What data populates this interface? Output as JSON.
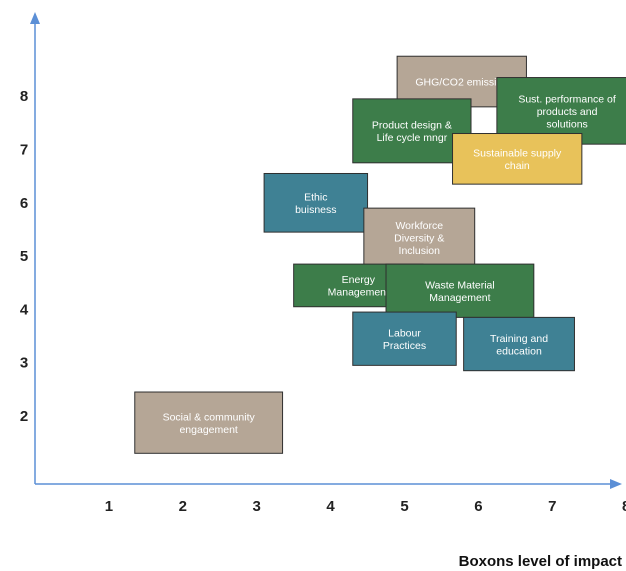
{
  "chart_data": {
    "type": "matrix",
    "xlabel": "Boxons level of impact",
    "ylabel": "",
    "xlim": [
      0,
      8
    ],
    "ylim": [
      0.6,
      8.6
    ],
    "x_ticks": [
      "1",
      "2",
      "3",
      "4",
      "5",
      "6",
      "7",
      "8"
    ],
    "y_ticks": [
      "2",
      "3",
      "4",
      "5",
      "6",
      "7",
      "8"
    ],
    "colors": {
      "axis": "#5b8fd6",
      "taupe": "#b5a696",
      "green": "#3d7d4a",
      "teal": "#3f8194",
      "yellow": "#e8c25a",
      "border": "#2f2f2f"
    },
    "boxes": [
      {
        "label": "Social & community engagement",
        "lines": [
          "Social & community",
          "engagement"
        ],
        "x0": 1.35,
        "x1": 3.35,
        "y0": 1.3,
        "y1": 2.45,
        "color": "taupe"
      },
      {
        "label": "Ethic buisness",
        "lines": [
          "Ethic",
          "buisness"
        ],
        "x0": 3.1,
        "x1": 4.5,
        "y0": 5.45,
        "y1": 6.55,
        "color": "teal"
      },
      {
        "label": "GHG/CO2 emission",
        "lines": [
          "GHG/CO2 emission"
        ],
        "x0": 4.9,
        "x1": 6.65,
        "y0": 7.8,
        "y1": 8.75,
        "color": "taupe"
      },
      {
        "label": "Sust. performance of products and solutions",
        "lines": [
          "Sust. performance of",
          "products and",
          "solutions"
        ],
        "x0": 6.25,
        "x1": 8.15,
        "y0": 7.1,
        "y1": 8.35,
        "color": "green"
      },
      {
        "label": "Product design & Life cycle mngr",
        "lines": [
          "Product design &",
          "Life cycle mngr"
        ],
        "x0": 4.3,
        "x1": 5.9,
        "y0": 6.75,
        "y1": 7.95,
        "color": "green"
      },
      {
        "label": "Sustainable supply chain",
        "lines": [
          "Sustainable supply",
          "chain"
        ],
        "x0": 5.65,
        "x1": 7.4,
        "y0": 6.35,
        "y1": 7.3,
        "color": "yellow"
      },
      {
        "label": "Workforce Diversity & Inclusion",
        "lines": [
          "Workforce",
          "Diversity &",
          "Inclusion"
        ],
        "x0": 4.45,
        "x1": 5.95,
        "y0": 4.8,
        "y1": 5.9,
        "color": "taupe"
      },
      {
        "label": "Energy Management",
        "lines": [
          "Energy",
          "Management"
        ],
        "x0": 3.5,
        "x1": 5.25,
        "y0": 4.05,
        "y1": 4.85,
        "color": "green"
      },
      {
        "label": "Waste Material Management",
        "lines": [
          "Waste Material",
          "Management"
        ],
        "x0": 4.75,
        "x1": 6.75,
        "y0": 3.85,
        "y1": 4.85,
        "color": "green"
      },
      {
        "label": "Labour Practices",
        "lines": [
          "Labour",
          "Practices"
        ],
        "x0": 4.3,
        "x1": 5.7,
        "y0": 2.95,
        "y1": 3.95,
        "color": "teal"
      },
      {
        "label": "Training and education",
        "lines": [
          "Training and",
          "education"
        ],
        "x0": 5.8,
        "x1": 7.3,
        "y0": 2.85,
        "y1": 3.85,
        "color": "teal"
      }
    ]
  }
}
